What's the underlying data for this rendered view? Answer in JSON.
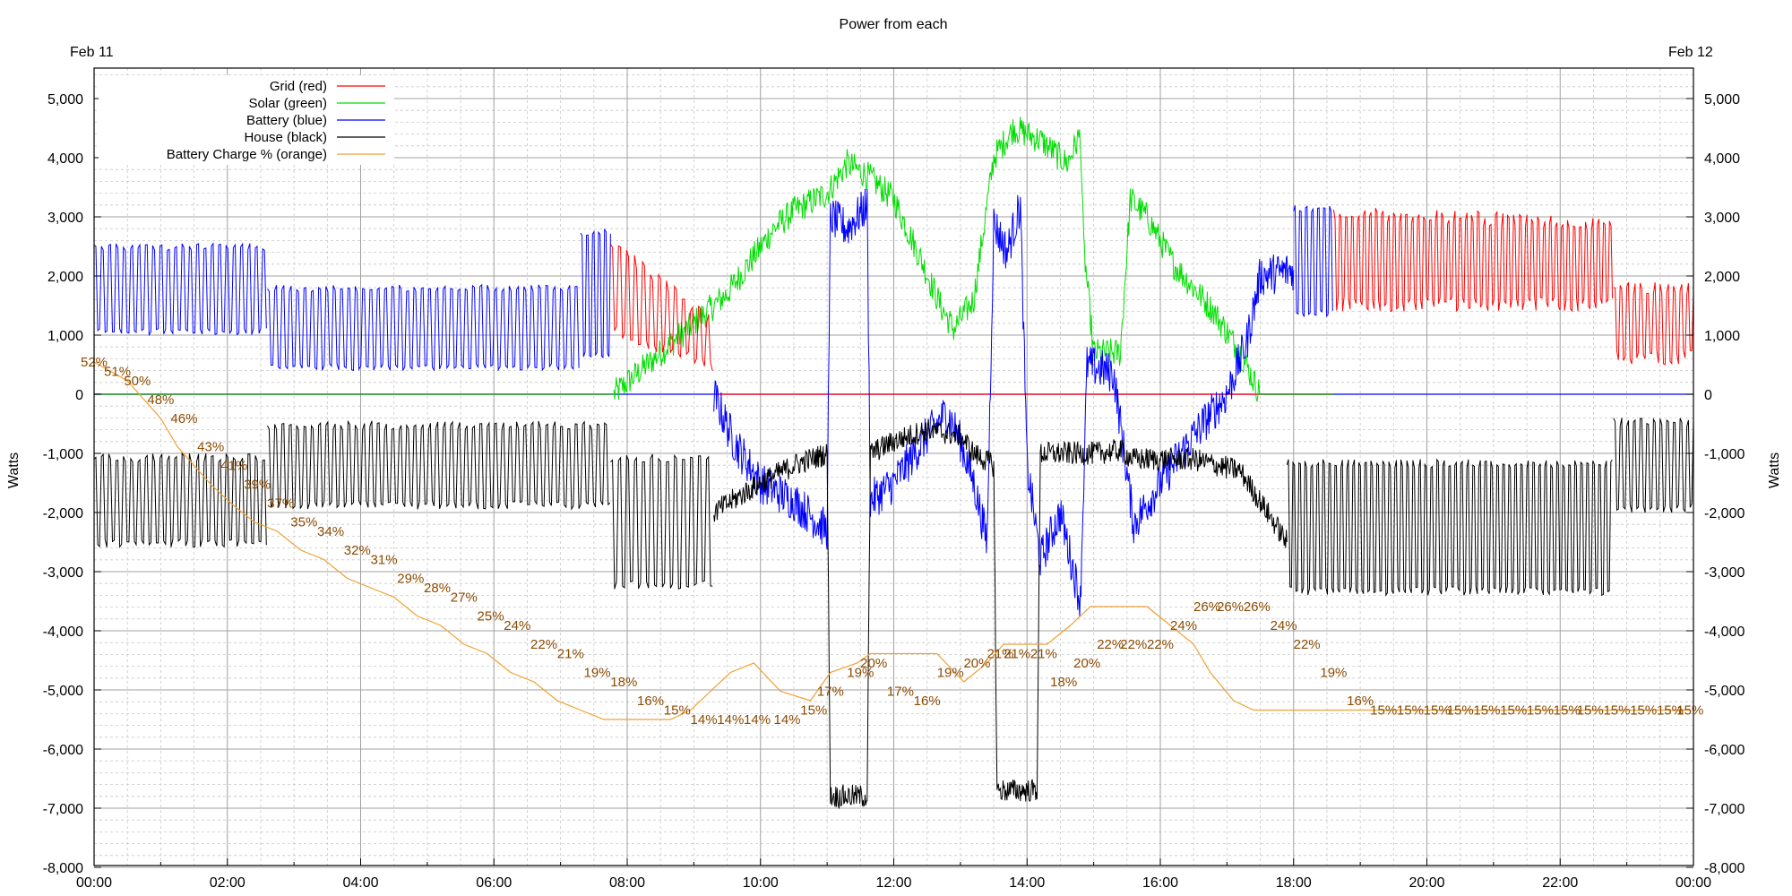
{
  "chart_data": {
    "type": "line",
    "title": "Power from each",
    "date_left": "Feb 11",
    "date_right": "Feb 12",
    "ylabel_left": "Watts",
    "ylabel_right": "Watts",
    "xlim_hours": [
      0,
      24
    ],
    "ylim": [
      -8000,
      5500
    ],
    "x_tick_labels": [
      "00:00",
      "02:00",
      "04:00",
      "06:00",
      "08:00",
      "10:00",
      "12:00",
      "14:00",
      "16:00",
      "18:00",
      "20:00",
      "22:00",
      "00:00"
    ],
    "y_ticks": [
      5000,
      4000,
      3000,
      2000,
      1000,
      0,
      -1000,
      -2000,
      -3000,
      -4000,
      -5000,
      -6000,
      -7000,
      -8000
    ],
    "y_tick_labels": [
      "5,000",
      "4,000",
      "3,000",
      "2,000",
      "1,000",
      "0",
      "-1,000",
      "-2,000",
      "-3,000",
      "-4,000",
      "-5,000",
      "-6,000",
      "-7,000",
      "-8,000"
    ],
    "grid": true,
    "legend_position": "top-left",
    "series": [
      {
        "name": "Grid (red)",
        "color": "#ff0000"
      },
      {
        "name": "Solar (green)",
        "color": "#00dd00"
      },
      {
        "name": "Battery (blue)",
        "color": "#0000ff"
      },
      {
        "name": "House (black)",
        "color": "#000000"
      },
      {
        "name": "Battery Charge % (orange)",
        "color": "#f0a030"
      }
    ],
    "grid_envelope": [
      {
        "from": 7.75,
        "to": 9.3,
        "low_start": 1000,
        "high_start": 2700,
        "low_end": 300,
        "high_end": 1300,
        "period": 0.12
      },
      {
        "from": 18.6,
        "to": 22.8,
        "low_start": 1400,
        "high_start": 3200,
        "low_end": 1400,
        "high_end": 3000,
        "period": 0.09
      },
      {
        "from": 22.8,
        "to": 24,
        "low_start": 500,
        "high_start": 1900,
        "low_end": 500,
        "high_end": 1900,
        "period": 0.1
      }
    ],
    "battery_envelope": [
      {
        "from": 0,
        "to": 2.6,
        "low": 1000,
        "high": 2550,
        "period": 0.11
      },
      {
        "from": 2.6,
        "to": 7.3,
        "low": 400,
        "high": 1850,
        "period": 0.11
      },
      {
        "from": 7.3,
        "to": 7.75,
        "low": 600,
        "high": 2800,
        "period": 0.09
      },
      {
        "from": 18.0,
        "to": 18.6,
        "low": 1300,
        "high": 3200,
        "period": 0.09
      }
    ],
    "house_envelope": [
      {
        "from": 0,
        "to": 2.6,
        "low": -2600,
        "high": -1000,
        "period": 0.11
      },
      {
        "from": 2.6,
        "to": 7.75,
        "low": -1950,
        "high": -450,
        "period": 0.11
      },
      {
        "from": 7.75,
        "to": 9.3,
        "low": -3300,
        "high": -1000,
        "period": 0.12
      },
      {
        "from": 17.9,
        "to": 22.8,
        "low": -3400,
        "high": -1100,
        "period": 0.09
      },
      {
        "from": 22.8,
        "to": 24,
        "low": -2000,
        "high": -400,
        "period": 0.1
      }
    ],
    "solar_curve": [
      [
        7.8,
        0
      ],
      [
        8.5,
        700
      ],
      [
        9.5,
        1700
      ],
      [
        10.2,
        2800
      ],
      [
        10.5,
        3100
      ],
      [
        11,
        3400
      ],
      [
        11.3,
        3900
      ],
      [
        11.6,
        3700
      ],
      [
        12,
        3300
      ],
      [
        12.4,
        2300
      ],
      [
        12.7,
        1500
      ],
      [
        12.9,
        1100
      ],
      [
        13.2,
        1600
      ],
      [
        13.5,
        4000
      ],
      [
        13.8,
        4500
      ],
      [
        14.2,
        4300
      ],
      [
        14.6,
        3900
      ],
      [
        14.8,
        4400
      ],
      [
        14.85,
        2500
      ],
      [
        15.0,
        700
      ],
      [
        15.4,
        700
      ],
      [
        15.55,
        3300
      ],
      [
        15.8,
        3000
      ],
      [
        16.2,
        2200
      ],
      [
        16.8,
        1400
      ],
      [
        17.2,
        700
      ],
      [
        17.5,
        0
      ]
    ],
    "battery_mid_curve": [
      [
        9.3,
        0
      ],
      [
        9.6,
        -800
      ],
      [
        10,
        -1500
      ],
      [
        10.5,
        -1800
      ],
      [
        11,
        -2300
      ],
      [
        11.05,
        3000
      ],
      [
        11.3,
        2800
      ],
      [
        11.6,
        3200
      ],
      [
        11.65,
        -1800
      ],
      [
        12,
        -1500
      ],
      [
        12.5,
        -700
      ],
      [
        12.8,
        -300
      ],
      [
        13,
        -800
      ],
      [
        13.2,
        -1500
      ],
      [
        13.4,
        -2500
      ],
      [
        13.5,
        2900
      ],
      [
        13.7,
        2400
      ],
      [
        13.9,
        3200
      ],
      [
        14.0,
        -1200
      ],
      [
        14.2,
        -2800
      ],
      [
        14.5,
        -2000
      ],
      [
        14.8,
        -3500
      ],
      [
        14.9,
        500
      ],
      [
        15.3,
        350
      ],
      [
        15.6,
        -2200
      ],
      [
        16,
        -1500
      ],
      [
        16.5,
        -700
      ],
      [
        17,
        0
      ],
      [
        17.3,
        900
      ],
      [
        17.5,
        2000
      ],
      [
        18.0,
        2100
      ]
    ],
    "house_mid_curve": [
      [
        9.3,
        -2000
      ],
      [
        10,
        -1500
      ],
      [
        10.5,
        -1200
      ],
      [
        11,
        -1000
      ],
      [
        11.05,
        -6800
      ],
      [
        11.6,
        -6800
      ],
      [
        11.65,
        -1000
      ],
      [
        12,
        -800
      ],
      [
        12.5,
        -600
      ],
      [
        13,
        -700
      ],
      [
        13.2,
        -1000
      ],
      [
        13.5,
        -1200
      ],
      [
        13.55,
        -6700
      ],
      [
        14.15,
        -6700
      ],
      [
        14.2,
        -1000
      ],
      [
        14.5,
        -1000
      ],
      [
        15,
        -1000
      ],
      [
        15.4,
        -950
      ],
      [
        15.6,
        -1100
      ],
      [
        16.5,
        -1100
      ],
      [
        17.2,
        -1300
      ],
      [
        17.9,
        -2500
      ]
    ],
    "battery_charge": {
      "times": [
        0,
        0.25,
        0.5,
        0.75,
        1.0,
        1.25,
        1.5,
        1.75,
        2.05,
        2.4,
        2.75,
        3.1,
        3.45,
        3.8,
        4.15,
        4.5,
        4.85,
        5.2,
        5.55,
        5.9,
        6.25,
        6.6,
        6.95,
        7.3,
        7.65,
        8.0,
        8.35,
        8.65,
        8.95,
        9.25,
        9.55,
        9.9,
        10.3,
        10.75,
        11.05,
        11.45,
        11.65,
        12.05,
        12.35,
        12.65,
        13.05,
        13.4,
        13.65,
        13.9,
        14.3,
        14.65,
        14.95,
        15.3,
        15.8,
        16.15,
        16.5,
        16.75,
        17.1,
        17.4,
        17.75,
        18.05,
        18.45,
        18.8,
        19.2,
        19.6,
        20.0,
        20.4,
        20.8,
        21.2,
        21.6,
        22.0,
        22.4,
        22.8,
        23.2,
        23.6,
        23.95
      ],
      "values": [
        52,
        51,
        50,
        48,
        46,
        43,
        41,
        39,
        37,
        35,
        34,
        32,
        31,
        29,
        28,
        27,
        25,
        24,
        22,
        21,
        19,
        18,
        16,
        15,
        14,
        14,
        14,
        14,
        15,
        17,
        19,
        20,
        17,
        16,
        19,
        20,
        21,
        21,
        21,
        21,
        18,
        20,
        22,
        22,
        22,
        24,
        26,
        26,
        26,
        24,
        22,
        19,
        16,
        15,
        15,
        15,
        15,
        15,
        15,
        15,
        15,
        15,
        15,
        15,
        15,
        15,
        15,
        15,
        15,
        15,
        15
      ],
      "label_times": [
        0,
        0.35,
        0.65,
        1.0,
        1.35,
        1.75,
        2.1,
        2.45,
        2.8,
        3.15,
        3.55,
        3.95,
        4.35,
        4.75,
        5.15,
        5.55,
        5.95,
        6.35,
        6.75,
        7.15,
        7.55,
        7.95,
        8.35,
        8.75,
        9.15,
        9.55,
        9.95,
        10.4,
        10.8,
        11.05,
        11.5,
        11.7,
        12.1,
        12.5,
        12.85,
        13.25,
        13.6,
        13.85,
        14.25,
        14.55,
        14.9,
        15.25,
        15.6,
        16.0,
        16.35,
        16.7,
        17.05,
        17.45,
        17.85,
        18.2,
        18.6,
        19.0,
        19.35,
        19.75,
        20.15,
        20.5,
        20.9,
        21.3,
        21.7,
        22.1,
        22.45,
        22.85,
        23.25,
        23.65,
        23.95
      ],
      "label_values": [
        52,
        51,
        50,
        48,
        46,
        43,
        41,
        39,
        37,
        35,
        34,
        32,
        31,
        29,
        28,
        27,
        25,
        24,
        22,
        21,
        19,
        18,
        16,
        15,
        14,
        14,
        14,
        14,
        15,
        17,
        19,
        20,
        17,
        16,
        19,
        20,
        21,
        21,
        21,
        18,
        20,
        22,
        22,
        22,
        24,
        26,
        26,
        26,
        24,
        22,
        19,
        16,
        15,
        15,
        15,
        15,
        15,
        15,
        15,
        15,
        15,
        15,
        15,
        15,
        15
      ]
    }
  }
}
